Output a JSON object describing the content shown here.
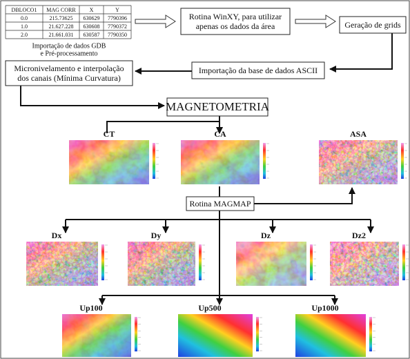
{
  "table": {
    "headers": [
      "DBLOCO1",
      "MAG CORR",
      "X",
      "Y"
    ],
    "rows": [
      [
        "0.0",
        "215.73625",
        "630629",
        "7790396"
      ],
      [
        "1.0",
        "21.627.228",
        "630608",
        "7790372"
      ],
      [
        "2.0",
        "21.661.031",
        "630587",
        "7790350"
      ]
    ]
  },
  "caption": {
    "lines": [
      "Importação de dados GDB",
      "e Pré-processamento"
    ]
  },
  "nodes": [
    {
      "lines": [
        "Rotina WinXY, para utilizar",
        "apenas os dados da área"
      ]
    },
    {
      "lines": [
        "Geração de grids"
      ]
    },
    {
      "lines": [
        "Importação da base de dados ASCII"
      ]
    },
    {
      "lines": [
        "Micronivelamento e interpolação",
        "dos canais (Mínima Curvatura)"
      ]
    },
    {
      "lines": [
        "MAGNETOMETRIA"
      ]
    },
    {
      "lines": [
        "Rotina MAGMAP"
      ]
    }
  ],
  "maps": [
    {
      "label": "CT"
    },
    {
      "label": "CA"
    },
    {
      "label": "ASA"
    },
    {
      "label": "Dx"
    },
    {
      "label": "Dy"
    },
    {
      "label": "Dz"
    },
    {
      "label": "Dz2"
    },
    {
      "label": "Up100"
    },
    {
      "label": "Up500"
    },
    {
      "label": "Up1000"
    }
  ]
}
